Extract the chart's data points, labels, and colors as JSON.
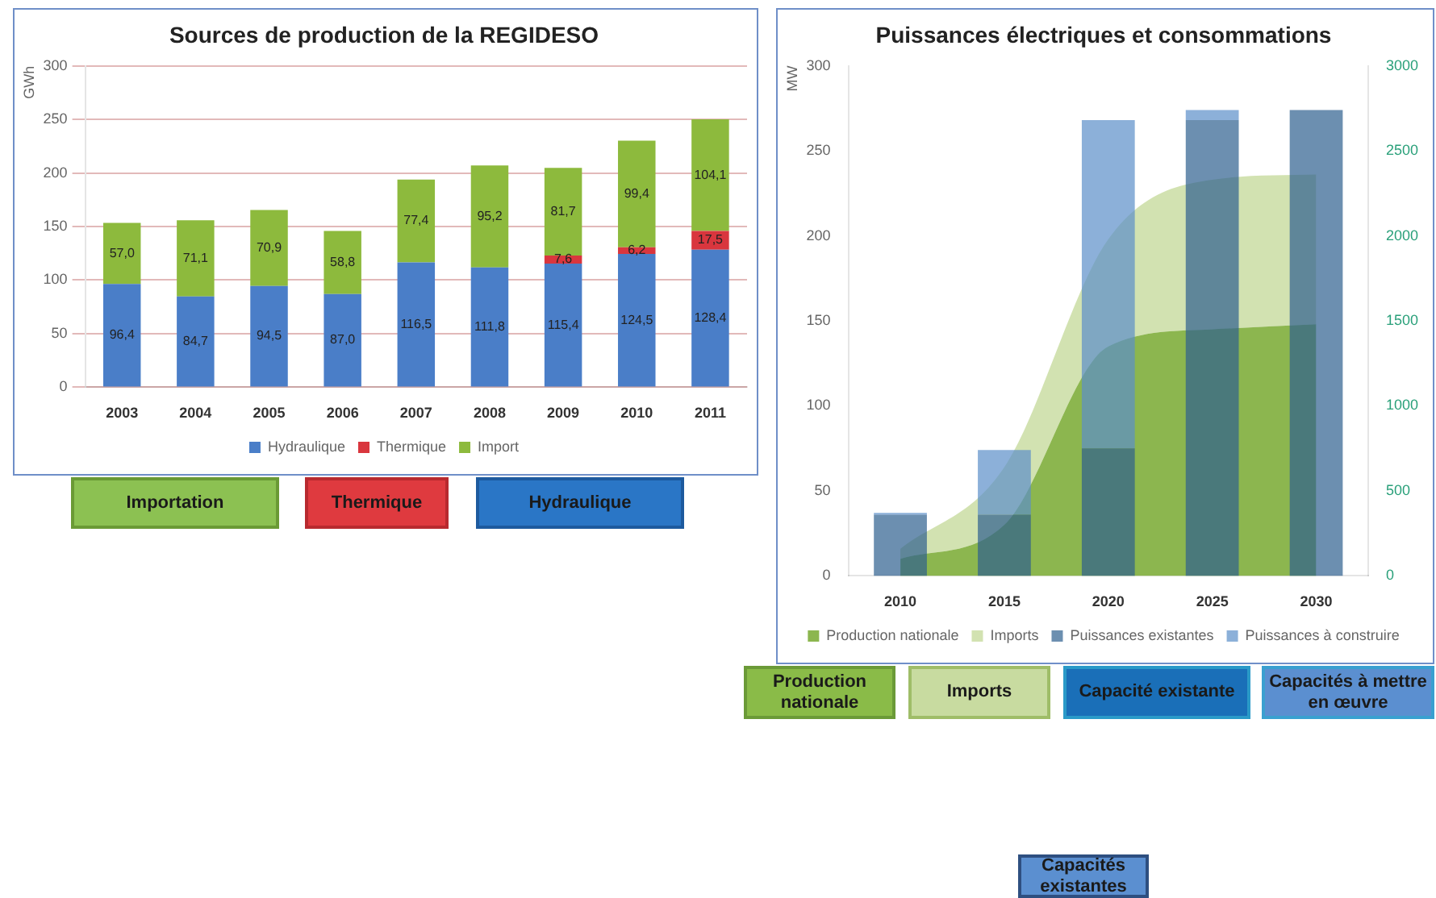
{
  "chart_data": [
    {
      "type": "bar",
      "title": "Sources de production de la REGIDESO",
      "ylabel": "GWh",
      "categories": [
        "2003",
        "2004",
        "2005",
        "2006",
        "2007",
        "2008",
        "2009",
        "2010",
        "2011"
      ],
      "stacked": true,
      "grid": "y",
      "legend": "bottom",
      "ylim": [
        0,
        300
      ],
      "yticks": [
        0,
        50,
        100,
        150,
        200,
        250,
        300
      ],
      "series": [
        {
          "name": "Hydraulique",
          "color": "#4a7ec8",
          "values": [
            96.4,
            84.7,
            94.5,
            87.0,
            116.5,
            111.8,
            115.4,
            124.5,
            128.4
          ],
          "value_labels": [
            "96,4",
            "84,7",
            "94,5",
            "87,0",
            "116,5",
            "111,8",
            "115,4",
            "124,5",
            "128,4"
          ]
        },
        {
          "name": "Thermique",
          "color": "#d9363e",
          "values": [
            null,
            null,
            null,
            null,
            null,
            null,
            7.6,
            6.2,
            17.5
          ],
          "value_labels": [
            null,
            null,
            null,
            null,
            null,
            null,
            "7,6",
            "6,2",
            "17,5"
          ]
        },
        {
          "name": "Import",
          "color": "#8dba3d",
          "values": [
            57.0,
            71.1,
            70.9,
            58.8,
            77.4,
            95.2,
            81.7,
            99.4,
            104.1
          ],
          "value_labels": [
            "57,0",
            "71,1",
            "70,9",
            "58,8",
            "77,4",
            "95,2",
            "81,7",
            "99,4",
            "104,1"
          ]
        }
      ],
      "annotations": [
        "Importation",
        "Thermique",
        "Hydraulique"
      ]
    },
    {
      "type": "bar",
      "title": "Puissances électriques et consommations",
      "ylabel": "MW",
      "categories": [
        "2010",
        "2015",
        "2020",
        "2025",
        "2030"
      ],
      "stacked": true,
      "legend": "bottom",
      "ylim": [
        0,
        300
      ],
      "yticks": [
        0,
        50,
        100,
        150,
        200,
        250,
        300
      ],
      "y2lim": [
        0,
        3000
      ],
      "y2ticks": [
        0,
        500,
        1000,
        1500,
        2000,
        2500,
        3000
      ],
      "series": [
        {
          "name": "Production nationale",
          "type": "area",
          "axis": "y2",
          "color": "#7fae3c",
          "values": [
            100,
            300,
            1350,
            1450,
            1480
          ]
        },
        {
          "name": "Imports",
          "type": "area",
          "axis": "y2",
          "color": "#cddfa8",
          "values": [
            60,
            340,
            630,
            880,
            880
          ]
        },
        {
          "name": "Puissances existantes",
          "type": "bar",
          "color": "#2e5f8f",
          "values": [
            36,
            36,
            75,
            268,
            274
          ]
        },
        {
          "name": "Puissances à construire",
          "type": "bar",
          "color": "#5b8fc9",
          "values": [
            1,
            38,
            193,
            6,
            null
          ]
        }
      ],
      "annotations": [
        "Production nationale",
        "Imports",
        "Capacité existante",
        "Capacités à mettre en œuvre",
        "Capacités existantes"
      ]
    }
  ]
}
